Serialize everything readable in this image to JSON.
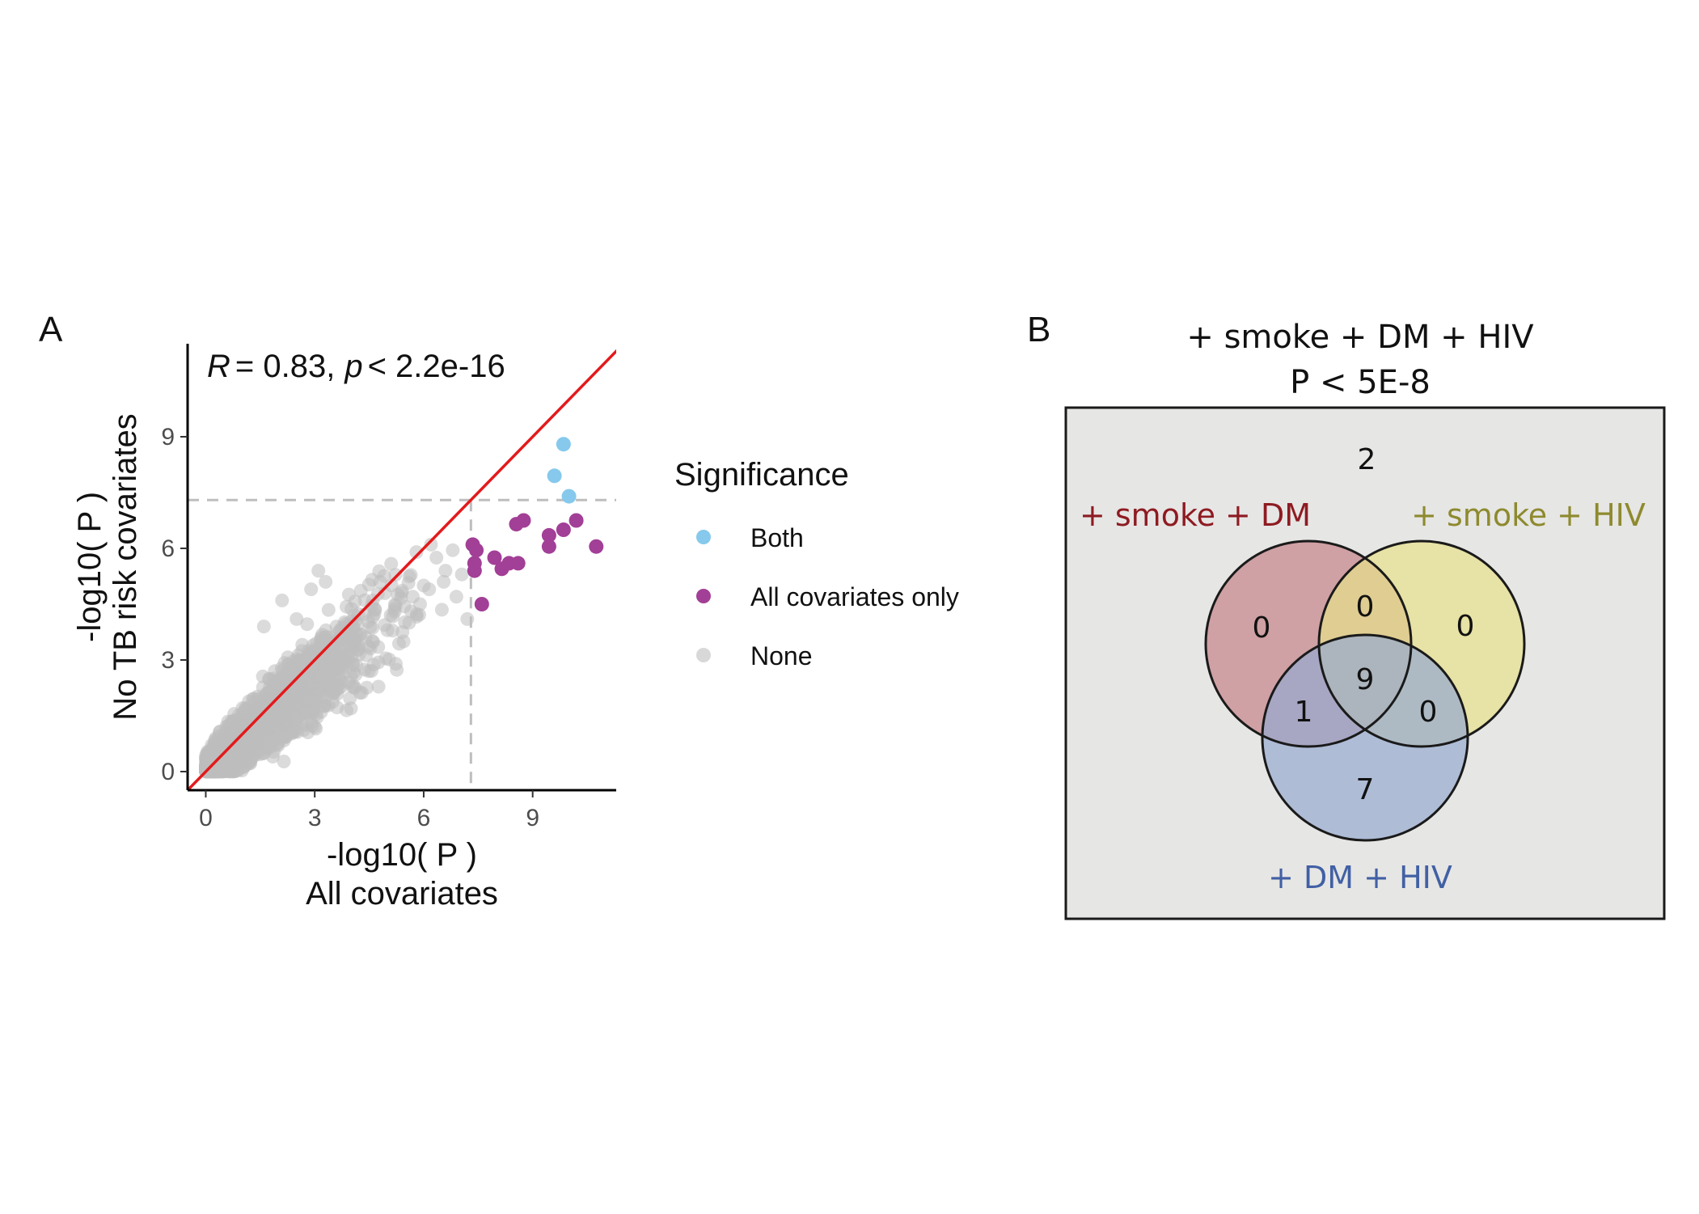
{
  "chart_data": [
    {
      "panel_label": "A",
      "type": "scatter",
      "annotation": {
        "r_symbol": "R",
        "r_value": "= 0.83,",
        "p_symbol": "p",
        "p_value": "< 2.2e-16"
      },
      "xlabel_line1": "-log10( P )",
      "xlabel_line2": "All covariates",
      "ylabel_line1": "-log10( P )",
      "ylabel_line2": "No TB risk covariates",
      "xlim": [
        -0.5,
        11.3
      ],
      "ylim": [
        -0.5,
        11.5
      ],
      "x_ticks": [
        0,
        3,
        6,
        9
      ],
      "y_ticks": [
        0,
        3,
        6,
        9
      ],
      "threshold": 7.3,
      "diagonal": "y = x",
      "grid": false,
      "legend": {
        "title": "Significance",
        "placement": "right",
        "entries": [
          {
            "label": "Both",
            "color": "#86C9EC"
          },
          {
            "label": "All covariates only",
            "color": "#A23F96"
          },
          {
            "label": "None",
            "color": "#BEBEBE"
          }
        ]
      },
      "series": [
        {
          "name": "Both",
          "color": "#86C9EC",
          "points": [
            [
              9.85,
              8.8
            ],
            [
              9.6,
              7.95
            ],
            [
              10.0,
              7.4
            ]
          ]
        },
        {
          "name": "All covariates only",
          "color": "#A23F96",
          "points": [
            [
              7.35,
              6.1
            ],
            [
              7.45,
              5.95
            ],
            [
              7.4,
              5.6
            ],
            [
              7.4,
              5.4
            ],
            [
              7.6,
              4.5
            ],
            [
              7.95,
              5.75
            ],
            [
              8.15,
              5.45
            ],
            [
              8.35,
              5.6
            ],
            [
              8.6,
              5.6
            ],
            [
              8.55,
              6.65
            ],
            [
              8.75,
              6.75
            ],
            [
              9.45,
              6.35
            ],
            [
              9.45,
              6.05
            ],
            [
              9.85,
              6.5
            ],
            [
              10.2,
              6.75
            ],
            [
              10.75,
              6.05
            ]
          ]
        },
        {
          "name": "None",
          "color": "#BEBEBE",
          "points": [
            [
              7.05,
              5.3
            ],
            [
              6.9,
              4.7
            ],
            [
              6.8,
              5.95
            ],
            [
              6.6,
              5.4
            ],
            [
              6.5,
              4.35
            ],
            [
              6.35,
              5.75
            ],
            [
              6.2,
              6.1
            ],
            [
              6.55,
              5.1
            ],
            [
              7.2,
              4.1
            ],
            [
              6.0,
              5.0
            ],
            [
              5.8,
              5.9
            ],
            [
              5.7,
              4.7
            ],
            [
              5.6,
              4.0
            ],
            [
              5.2,
              4.3
            ],
            [
              5.0,
              3.8
            ],
            [
              4.8,
              5.1
            ],
            [
              4.6,
              4.6
            ],
            [
              4.4,
              3.6
            ],
            [
              4.2,
              3.3
            ],
            [
              3.1,
              5.4
            ],
            [
              3.3,
              5.1
            ],
            [
              2.9,
              4.9
            ],
            [
              2.1,
              4.6
            ],
            [
              2.5,
              4.1
            ],
            [
              1.6,
              3.9
            ],
            [
              1.9,
              2.7
            ],
            [
              5.9,
              4.5
            ],
            [
              6.15,
              4.9
            ],
            [
              3.6,
              2.2
            ],
            [
              3.0,
              1.2
            ]
          ]
        }
      ],
      "cloud_size": 5000,
      "cloud_seed": 7
    },
    {
      "panel_label": "B",
      "type": "venn",
      "title_line1": "+ smoke + DM + HIV",
      "title_line2": "P < 5E-8",
      "outside_count": "2",
      "sets": [
        {
          "name": "+ smoke + DM",
          "color": "#C48189",
          "label_color": "#8E1B21"
        },
        {
          "name": "+ smoke + HIV",
          "color": "#E7E08A",
          "label_color": "#8E8A2E"
        },
        {
          "name": "+ DM + HIV",
          "color": "#95A9D0",
          "label_color": "#4160A4"
        }
      ],
      "regions": {
        "smoke_dm_only": "0",
        "smoke_hiv_only": "0",
        "dm_hiv_only": "7",
        "smoke_dm_and_smoke_hiv": "0",
        "smoke_dm_and_dm_hiv": "1",
        "smoke_hiv_and_dm_hiv": "0",
        "all_three": "9"
      },
      "background_color": "#E6E6E5"
    }
  ]
}
